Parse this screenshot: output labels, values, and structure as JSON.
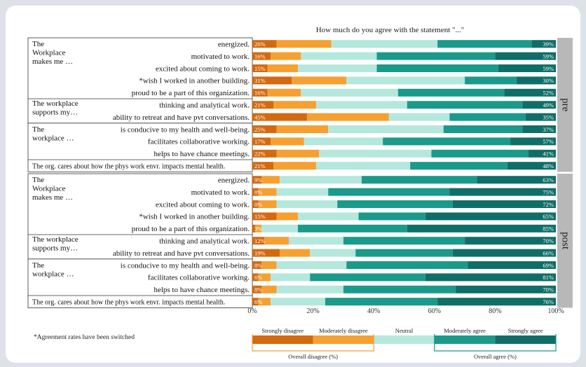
{
  "chart_data": {
    "type": "bar",
    "stacked": true,
    "orientation": "horizontal",
    "title": "How much do you agree with the statement \"...\"",
    "xlim": [
      0,
      100
    ],
    "xticks": [
      "0%",
      "20%",
      "40%",
      "60%",
      "80%",
      "100%"
    ],
    "footnote": "*Agreement rates have been switched",
    "legend": {
      "items": [
        "Strongly disagree",
        "Moderately disagree",
        "Neutral",
        "Moderately agree",
        "Strongly agree"
      ],
      "disagree_label": "Overall disagree (%)",
      "agree_label": "Overall agree (%)"
    },
    "colors": {
      "strongly_disagree": "#d4690f",
      "moderately_disagree": "#f5a031",
      "neutral": "#b4e8dc",
      "moderately_agree": "#1a9a8a",
      "strongly_agree": "#0f6e67"
    },
    "panels": [
      {
        "name": "pre",
        "groups": [
          {
            "label": "The Workplace makes me …",
            "lines": [
              "The",
              "Workplace",
              "makes me …"
            ]
          },
          {
            "label": "The workplace supports my…",
            "lines": [
              "The workplace",
              "supports my…"
            ]
          },
          {
            "label": "The workplace …",
            "lines": [
              "The",
              "workplace …"
            ]
          }
        ],
        "rows": [
          {
            "group": 0,
            "label": "energized.",
            "values": [
              8,
              18,
              35,
              31,
              8
            ],
            "disagree": "26%",
            "agree": "39%"
          },
          {
            "group": 0,
            "label": "motivated to work.",
            "values": [
              6,
              10,
              25,
              39,
              20
            ],
            "disagree": "16%",
            "agree": "59%"
          },
          {
            "group": 0,
            "label": "excited about coming to work.",
            "values": [
              5,
              10,
              26,
              40,
              19
            ],
            "disagree": "15%",
            "agree": "59%"
          },
          {
            "group": 0,
            "label": "*wish I worked in another building.",
            "values": [
              13,
              18,
              39,
              17,
              13
            ],
            "disagree": "31%",
            "agree": "30%"
          },
          {
            "group": 0,
            "label": "proud to be a part of this organization.",
            "values": [
              5,
              11,
              32,
              35,
              17
            ],
            "disagree": "16%",
            "agree": "52%"
          },
          {
            "group": 1,
            "label": "thinking and analytical work.",
            "values": [
              7,
              14,
              30,
              38,
              11
            ],
            "disagree": "21%",
            "agree": "49%"
          },
          {
            "group": 1,
            "label": "ability to retreat and have pvt conversations.",
            "values": [
              18,
              27,
              20,
              25,
              10
            ],
            "disagree": "45%",
            "agree": "35%"
          },
          {
            "group": 2,
            "label": "is conducive to my health and well-being.",
            "values": [
              8,
              17,
              38,
              26,
              11
            ],
            "disagree": "25%",
            "agree": "37%"
          },
          {
            "group": 2,
            "label": "facilitates collaborative working.",
            "values": [
              6,
              11,
              26,
              42,
              15
            ],
            "disagree": "17%",
            "agree": "57%"
          },
          {
            "group": 2,
            "label": "helps to have chance meetings.",
            "values": [
              8,
              14,
              37,
              32,
              9
            ],
            "disagree": "22%",
            "agree": "41%"
          },
          {
            "group": null,
            "label": "The org. cares about how the phys work envr. impacts mental health.",
            "values": [
              7,
              14,
              31,
              32,
              16
            ],
            "disagree": "21%",
            "agree": "48%"
          }
        ]
      },
      {
        "name": "post",
        "groups": [
          {
            "label": "The Workplace makes me …",
            "lines": [
              "The",
              "Workplace",
              "makes me …"
            ]
          },
          {
            "label": "The workplace supports my…",
            "lines": [
              "The workplace",
              "supports my…"
            ]
          },
          {
            "label": "The workplace …",
            "lines": [
              "The",
              "workplace …"
            ]
          }
        ],
        "rows": [
          {
            "group": 0,
            "label": "energized.",
            "values": [
              3,
              6,
              27,
              38,
              26
            ],
            "disagree": "9%",
            "agree": "63%"
          },
          {
            "group": 0,
            "label": "motivated to work.",
            "values": [
              2,
              6,
              17,
              40,
              35
            ],
            "disagree": "8%",
            "agree": "75%"
          },
          {
            "group": 0,
            "label": "excited about coming to work.",
            "values": [
              2,
              6,
              20,
              38,
              34
            ],
            "disagree": "8%",
            "agree": "72%"
          },
          {
            "group": 0,
            "label": "*wish I worked in another building.",
            "values": [
              8,
              7,
              20,
              22,
              43
            ],
            "disagree": "15%",
            "agree": "65%"
          },
          {
            "group": 0,
            "label": "proud to be a part of this organization.",
            "values": [
              1,
              2,
              12,
              36,
              49
            ],
            "disagree": "3%",
            "agree": "85%"
          },
          {
            "group": 1,
            "label": "thinking and analytical work.",
            "values": [
              4,
              8,
              18,
              40,
              30
            ],
            "disagree": "12%",
            "agree": "70%"
          },
          {
            "group": 1,
            "label": "ability to retreat and have pvt conversations.",
            "values": [
              9,
              10,
              15,
              32,
              34
            ],
            "disagree": "19%",
            "agree": "66%"
          },
          {
            "group": 2,
            "label": "is conducive to my health and well-being.",
            "values": [
              3,
              5,
              23,
              40,
              29
            ],
            "disagree": "8%",
            "agree": "69%"
          },
          {
            "group": 2,
            "label": "facilitates collaborative working.",
            "values": [
              2,
              4,
              13,
              38,
              43
            ],
            "disagree": "6%",
            "agree": "81%"
          },
          {
            "group": 2,
            "label": "helps to have chance meetings.",
            "values": [
              3,
              5,
              22,
              37,
              33
            ],
            "disagree": "8%",
            "agree": "70%"
          },
          {
            "group": null,
            "label": "The org. cares about how the phys work envr. impacts mental health.",
            "values": [
              2,
              4,
              18,
              37,
              39
            ],
            "disagree": "6%",
            "agree": "76%"
          }
        ]
      }
    ]
  }
}
